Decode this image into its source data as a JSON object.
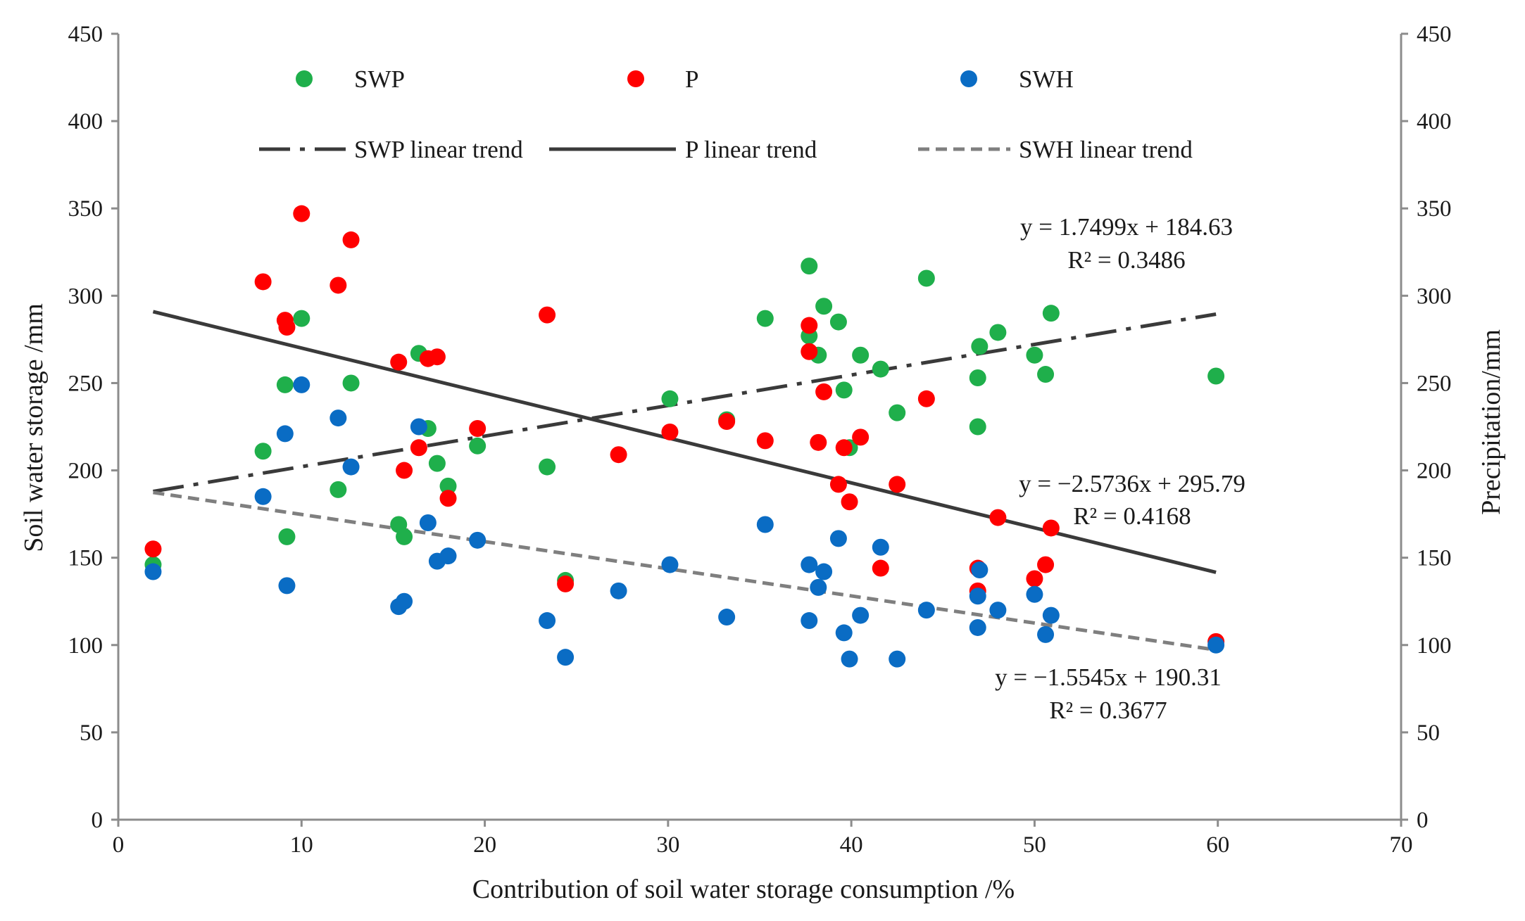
{
  "chart_data": {
    "type": "scatter",
    "xlabel": "Contribution of soil water storage consumption /%",
    "ylabel_left": "Soil water storage /mm",
    "ylabel_right": "Precipitation/mm",
    "xlim": [
      0,
      70
    ],
    "ylim": [
      0,
      450
    ],
    "x_ticks": [
      0,
      10,
      20,
      30,
      40,
      50,
      60,
      70
    ],
    "y_ticks": [
      0,
      50,
      100,
      150,
      200,
      250,
      300,
      350,
      400,
      450
    ],
    "grid": false,
    "legend_position": "top",
    "series": [
      {
        "name": "SWP",
        "color": "#1faf4b",
        "axis": "left",
        "points": [
          [
            1.9,
            146
          ],
          [
            7.9,
            211
          ],
          [
            9.1,
            249
          ],
          [
            9.2,
            162
          ],
          [
            10,
            287
          ],
          [
            12,
            189
          ],
          [
            12.7,
            250
          ],
          [
            15.3,
            169
          ],
          [
            15.6,
            162
          ],
          [
            16.4,
            267
          ],
          [
            16.9,
            224
          ],
          [
            17.4,
            204
          ],
          [
            18,
            191
          ],
          [
            19.6,
            214
          ],
          [
            23.4,
            202
          ],
          [
            24.4,
            137
          ],
          [
            30.1,
            241
          ],
          [
            33.2,
            229
          ],
          [
            35.3,
            287
          ],
          [
            37.7,
            317
          ],
          [
            37.7,
            277
          ],
          [
            38.2,
            266
          ],
          [
            38.5,
            294
          ],
          [
            39.3,
            285
          ],
          [
            39.6,
            246
          ],
          [
            39.9,
            213
          ],
          [
            40.5,
            266
          ],
          [
            41.6,
            258
          ],
          [
            42.5,
            233
          ],
          [
            44.1,
            310
          ],
          [
            46.9,
            253
          ],
          [
            46.9,
            225
          ],
          [
            47,
            271
          ],
          [
            48,
            279
          ],
          [
            50,
            266
          ],
          [
            50.6,
            255
          ],
          [
            50.9,
            290
          ],
          [
            59.9,
            254
          ]
        ]
      },
      {
        "name": "P",
        "color": "#ff0000",
        "axis": "right",
        "points": [
          [
            1.9,
            155
          ],
          [
            7.9,
            308
          ],
          [
            9.1,
            286
          ],
          [
            9.2,
            282
          ],
          [
            10,
            347
          ],
          [
            12,
            306
          ],
          [
            12.7,
            332
          ],
          [
            15.3,
            262
          ],
          [
            15.6,
            200
          ],
          [
            16.4,
            213
          ],
          [
            16.9,
            264
          ],
          [
            17.4,
            265
          ],
          [
            18,
            184
          ],
          [
            19.6,
            224
          ],
          [
            23.4,
            289
          ],
          [
            24.4,
            135
          ],
          [
            27.3,
            209
          ],
          [
            30.1,
            222
          ],
          [
            33.2,
            228
          ],
          [
            35.3,
            217
          ],
          [
            37.7,
            283
          ],
          [
            37.7,
            268
          ],
          [
            38.2,
            216
          ],
          [
            38.5,
            245
          ],
          [
            39.3,
            192
          ],
          [
            39.6,
            213
          ],
          [
            39.9,
            182
          ],
          [
            40.5,
            219
          ],
          [
            41.6,
            144
          ],
          [
            42.5,
            192
          ],
          [
            44.1,
            241
          ],
          [
            46.9,
            144
          ],
          [
            46.9,
            131
          ],
          [
            48,
            173
          ],
          [
            50,
            138
          ],
          [
            50.6,
            146
          ],
          [
            50.9,
            167
          ],
          [
            59.9,
            102
          ]
        ]
      },
      {
        "name": "SWH",
        "color": "#0a6cc4",
        "axis": "left",
        "points": [
          [
            1.9,
            142
          ],
          [
            7.9,
            185
          ],
          [
            9.1,
            221
          ],
          [
            9.2,
            134
          ],
          [
            10,
            249
          ],
          [
            12,
            230
          ],
          [
            12.7,
            202
          ],
          [
            15.3,
            122
          ],
          [
            15.6,
            125
          ],
          [
            16.4,
            225
          ],
          [
            16.9,
            170
          ],
          [
            17.4,
            148
          ],
          [
            18,
            151
          ],
          [
            19.6,
            160
          ],
          [
            23.4,
            114
          ],
          [
            24.4,
            93
          ],
          [
            27.3,
            131
          ],
          [
            30.1,
            146
          ],
          [
            33.2,
            116
          ],
          [
            35.3,
            169
          ],
          [
            37.7,
            146
          ],
          [
            37.7,
            114
          ],
          [
            38.2,
            133
          ],
          [
            38.5,
            142
          ],
          [
            39.3,
            161
          ],
          [
            39.6,
            107
          ],
          [
            39.9,
            92
          ],
          [
            40.5,
            117
          ],
          [
            41.6,
            156
          ],
          [
            42.5,
            92
          ],
          [
            44.1,
            120
          ],
          [
            46.9,
            110
          ],
          [
            46.9,
            128
          ],
          [
            47,
            143
          ],
          [
            48,
            120
          ],
          [
            50,
            129
          ],
          [
            50.6,
            106
          ],
          [
            50.9,
            117
          ],
          [
            59.9,
            100
          ]
        ]
      }
    ],
    "trendlines": [
      {
        "name": "SWP linear trend",
        "series": "SWP",
        "slope": 1.7499,
        "intercept": 184.63,
        "x_range": [
          1.9,
          59.9
        ],
        "style": "dash-dot",
        "color": "#3a3a3a"
      },
      {
        "name": "P linear trend",
        "series": "P",
        "slope": -2.5736,
        "intercept": 295.79,
        "x_range": [
          1.9,
          59.9
        ],
        "style": "solid",
        "color": "#3a3a3a"
      },
      {
        "name": "SWH linear trend",
        "series": "SWH",
        "slope": -1.5545,
        "intercept": 190.31,
        "x_range": [
          1.9,
          59.9
        ],
        "style": "dashed",
        "color": "#7f7f7f"
      }
    ],
    "annotations": [
      {
        "equation": "y = 1.7499x + 184.63",
        "r2": "R² = 0.3486"
      },
      {
        "equation": "y = −2.5736x + 295.79",
        "r2": "R² = 0.4168"
      },
      {
        "equation": "y = −1.5545x + 190.31",
        "r2": "R² = 0.3677"
      }
    ]
  }
}
